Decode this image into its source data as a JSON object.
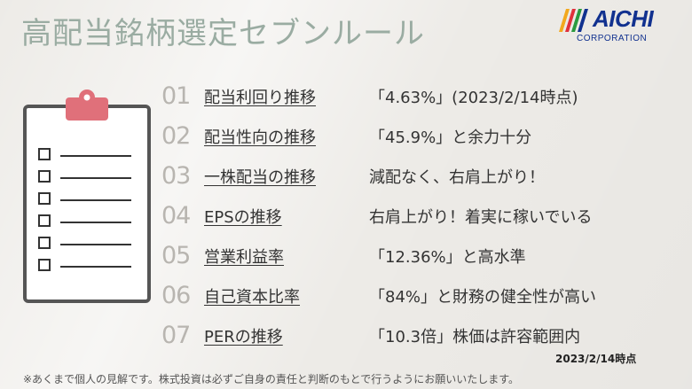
{
  "title": "高配当銘柄選定セブンルール",
  "logo": {
    "name": "AICHI",
    "sub": "CORPORATION",
    "color": "#11318f",
    "icon": "aichi-logo-mark"
  },
  "clipboard": {
    "icon": "clipboard-checklist-icon",
    "clip_color": "#e0707a",
    "item_count": 6
  },
  "rules": [
    {
      "num": "01",
      "label": "配当利回り推移",
      "desc": "「4.63%」(2023/2/14時点)"
    },
    {
      "num": "02",
      "label": "配当性向の推移",
      "desc": "「45.9%」と余力十分"
    },
    {
      "num": "03",
      "label": "一株配当の推移",
      "desc": "減配なく、右肩上がり！"
    },
    {
      "num": "04",
      "label": "EPSの推移",
      "desc": "右肩上がり！着実に稼いでいる"
    },
    {
      "num": "05",
      "label": "営業利益率",
      "desc": "「12.36%」と高水準"
    },
    {
      "num": "06",
      "label": "自己資本比率",
      "desc": "「84%」と財務の健全性が高い"
    },
    {
      "num": "07",
      "label": "PERの推移",
      "desc": "「10.3倍」株価は許容範囲内"
    }
  ],
  "date_note": "2023/2/14時点",
  "disclaimer": "※あくまで個人の見解です。株式投資は必ずご自身の責任と判断のもとで行うようにお願いいたします。"
}
